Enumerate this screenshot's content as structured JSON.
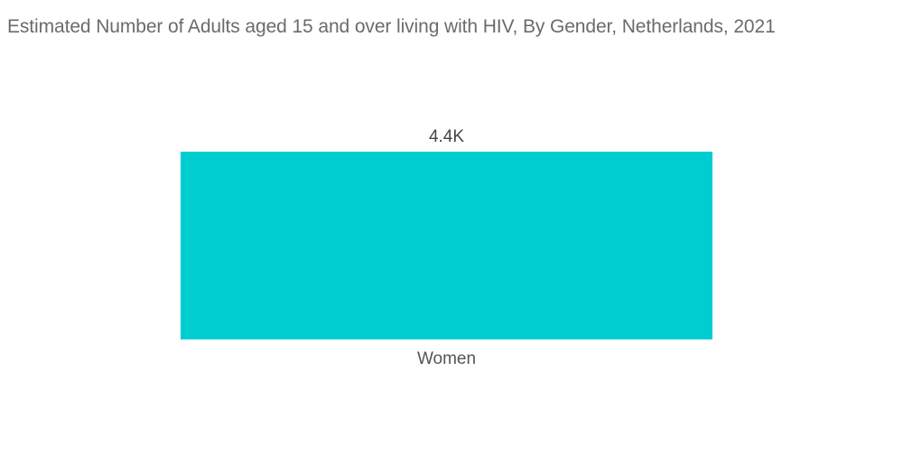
{
  "chart_data": {
    "type": "bar",
    "title": "Estimated Number of Adults aged 15 and over living with HIV, By Gender, Netherlands, 2021",
    "categories": [
      "Women"
    ],
    "values": [
      4400
    ],
    "value_labels": [
      "4.4K"
    ],
    "xlabel": "",
    "ylabel": "",
    "ylim": [
      0,
      4400
    ],
    "grid": false,
    "legend": "none",
    "colors": {
      "bar": "#00cdd0"
    }
  }
}
